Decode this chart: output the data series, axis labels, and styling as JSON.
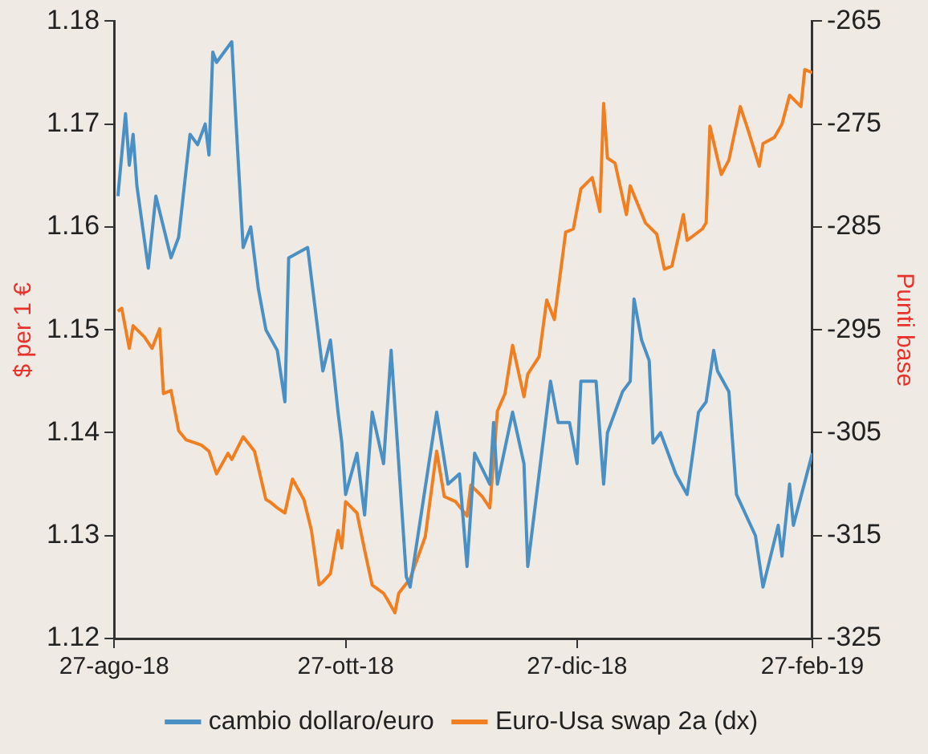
{
  "chart_data": {
    "type": "line",
    "ylabel": "$ per 1 €",
    "y2label": "Punti base",
    "xlim": [
      "2018-08-27",
      "2019-02-27"
    ],
    "xticks": [
      {
        "value": "2018-08-27",
        "label": "27-ago-18"
      },
      {
        "value": "2018-10-27",
        "label": "27-ott-18"
      },
      {
        "value": "2018-12-27",
        "label": "27-dic-18"
      },
      {
        "value": "2019-02-27",
        "label": "27-feb-19"
      }
    ],
    "ylim": [
      1.12,
      1.18
    ],
    "yticks": [
      1.12,
      1.13,
      1.14,
      1.15,
      1.16,
      1.17,
      1.18
    ],
    "y2lim": [
      -325,
      -265
    ],
    "y2ticks": [
      -325,
      -315,
      -305,
      -295,
      -285,
      -275,
      -265
    ],
    "grid": false,
    "legend": "bottom",
    "marker": "none",
    "line_style": "solid",
    "series": [
      {
        "name": "cambio dollaro/euro",
        "color": "#4a90c4",
        "x": [
          "2018-08-28",
          "2018-08-30",
          "2018-08-31",
          "2018-09-01",
          "2018-09-02",
          "2018-09-05",
          "2018-09-07",
          "2018-09-11",
          "2018-09-13",
          "2018-09-16",
          "2018-09-18",
          "2018-09-20",
          "2018-09-21",
          "2018-09-22",
          "2018-09-23",
          "2018-09-27",
          "2018-09-28",
          "2018-09-30",
          "2018-10-01",
          "2018-10-02",
          "2018-10-04",
          "2018-10-06",
          "2018-10-09",
          "2018-10-11",
          "2018-10-12",
          "2018-10-17",
          "2018-10-21",
          "2018-10-23",
          "2018-10-25",
          "2018-10-26",
          "2018-10-27",
          "2018-10-30",
          "2018-11-01",
          "2018-11-03",
          "2018-11-06",
          "2018-11-08",
          "2018-11-12",
          "2018-11-13",
          "2018-11-20",
          "2018-11-23",
          "2018-11-26",
          "2018-11-28",
          "2018-11-30",
          "2018-12-04",
          "2018-12-05",
          "2018-12-06",
          "2018-12-10",
          "2018-12-13",
          "2018-12-14",
          "2018-12-20",
          "2018-12-22",
          "2018-12-25",
          "2018-12-27",
          "2018-12-28",
          "2019-01-01",
          "2019-01-03",
          "2019-01-04",
          "2019-01-08",
          "2019-01-10",
          "2019-01-11",
          "2019-01-13",
          "2019-01-15",
          "2019-01-16",
          "2019-01-18",
          "2019-01-22",
          "2019-01-25",
          "2019-01-28",
          "2019-01-30",
          "2019-02-01",
          "2019-02-02",
          "2019-02-05",
          "2019-02-07",
          "2019-02-12",
          "2019-02-14",
          "2019-02-18",
          "2019-02-19",
          "2019-02-21",
          "2019-02-22",
          "2019-02-27"
        ],
        "values": [
          1.163,
          1.171,
          1.166,
          1.169,
          1.164,
          1.156,
          1.163,
          1.157,
          1.159,
          1.169,
          1.168,
          1.17,
          1.167,
          1.177,
          1.176,
          1.178,
          1.171,
          1.158,
          1.159,
          1.16,
          1.154,
          1.15,
          1.148,
          1.143,
          1.157,
          1.158,
          1.146,
          1.149,
          1.142,
          1.139,
          1.134,
          1.138,
          1.132,
          1.142,
          1.137,
          1.148,
          1.126,
          1.125,
          1.142,
          1.135,
          1.136,
          1.127,
          1.138,
          1.135,
          1.141,
          1.135,
          1.142,
          1.137,
          1.127,
          1.145,
          1.141,
          1.141,
          1.137,
          1.145,
          1.145,
          1.135,
          1.14,
          1.144,
          1.145,
          1.153,
          1.149,
          1.147,
          1.139,
          1.14,
          1.136,
          1.134,
          1.142,
          1.143,
          1.148,
          1.146,
          1.144,
          1.134,
          1.13,
          1.125,
          1.131,
          1.128,
          1.135,
          1.131,
          1.138
        ]
      },
      {
        "name": "Euro-Usa swap 2a (dx)",
        "color": "#f07f22",
        "axis": "y2",
        "x": [
          "2018-08-28",
          "2018-08-29",
          "2018-08-31",
          "2018-09-01",
          "2018-09-04",
          "2018-09-06",
          "2018-09-08",
          "2018-09-09",
          "2018-09-11",
          "2018-09-13",
          "2018-09-15",
          "2018-09-19",
          "2018-09-21",
          "2018-09-23",
          "2018-09-26",
          "2018-09-27",
          "2018-09-30",
          "2018-10-03",
          "2018-10-06",
          "2018-10-07",
          "2018-10-09",
          "2018-10-11",
          "2018-10-13",
          "2018-10-16",
          "2018-10-18",
          "2018-10-20",
          "2018-10-21",
          "2018-10-23",
          "2018-10-25",
          "2018-10-26",
          "2018-10-27",
          "2018-10-30",
          "2018-11-01",
          "2018-11-03",
          "2018-11-06",
          "2018-11-07",
          "2018-11-09",
          "2018-11-10",
          "2018-11-13",
          "2018-11-17",
          "2018-11-18",
          "2018-11-20",
          "2018-11-22",
          "2018-11-25",
          "2018-11-28",
          "2018-11-29",
          "2018-12-02",
          "2018-12-04",
          "2018-12-06",
          "2018-12-08",
          "2018-12-10",
          "2018-12-13",
          "2018-12-14",
          "2018-12-17",
          "2018-12-19",
          "2018-12-21",
          "2018-12-24",
          "2018-12-26",
          "2018-12-28",
          "2018-12-31",
          "2019-01-02",
          "2019-01-03",
          "2019-01-04",
          "2019-01-06",
          "2019-01-09",
          "2019-01-10",
          "2019-01-14",
          "2019-01-17",
          "2019-01-19",
          "2019-01-21",
          "2019-01-24",
          "2019-01-25",
          "2019-01-29",
          "2019-01-30",
          "2019-01-31",
          "2019-02-03",
          "2019-02-05",
          "2019-02-08",
          "2019-02-10",
          "2019-02-13",
          "2019-02-14",
          "2019-02-17",
          "2019-02-19",
          "2019-02-21",
          "2019-02-24",
          "2019-02-25",
          "2019-02-27"
        ],
        "values": [
          -293.2,
          -292.9,
          -296.8,
          -294.6,
          -295.7,
          -296.8,
          -294.9,
          -301.2,
          -300.9,
          -304.8,
          -305.7,
          -306.2,
          -306.8,
          -309.0,
          -307.0,
          -307.6,
          -305.4,
          -306.8,
          -311.5,
          -311.7,
          -312.3,
          -312.8,
          -309.5,
          -311.5,
          -314.5,
          -319.8,
          -319.5,
          -318.7,
          -314.5,
          -316.2,
          -311.7,
          -312.8,
          -316.4,
          -319.8,
          -320.6,
          -321.2,
          -322.5,
          -320.6,
          -319.2,
          -315.1,
          -312.3,
          -306.8,
          -311.2,
          -311.7,
          -313.1,
          -310.1,
          -311.2,
          -312.3,
          -302.9,
          -301.2,
          -296.5,
          -301.5,
          -299.3,
          -297.6,
          -292.1,
          -294.0,
          -285.5,
          -285.2,
          -281.3,
          -280.2,
          -283.5,
          -273.0,
          -278.3,
          -278.8,
          -283.8,
          -281.0,
          -284.6,
          -285.7,
          -289.1,
          -288.8,
          -283.8,
          -286.3,
          -285.2,
          -284.6,
          -275.2,
          -279.9,
          -278.5,
          -273.3,
          -275.5,
          -279.1,
          -276.9,
          -276.3,
          -275.0,
          -272.2,
          -273.3,
          -269.7,
          -270.0
        ]
      }
    ]
  }
}
